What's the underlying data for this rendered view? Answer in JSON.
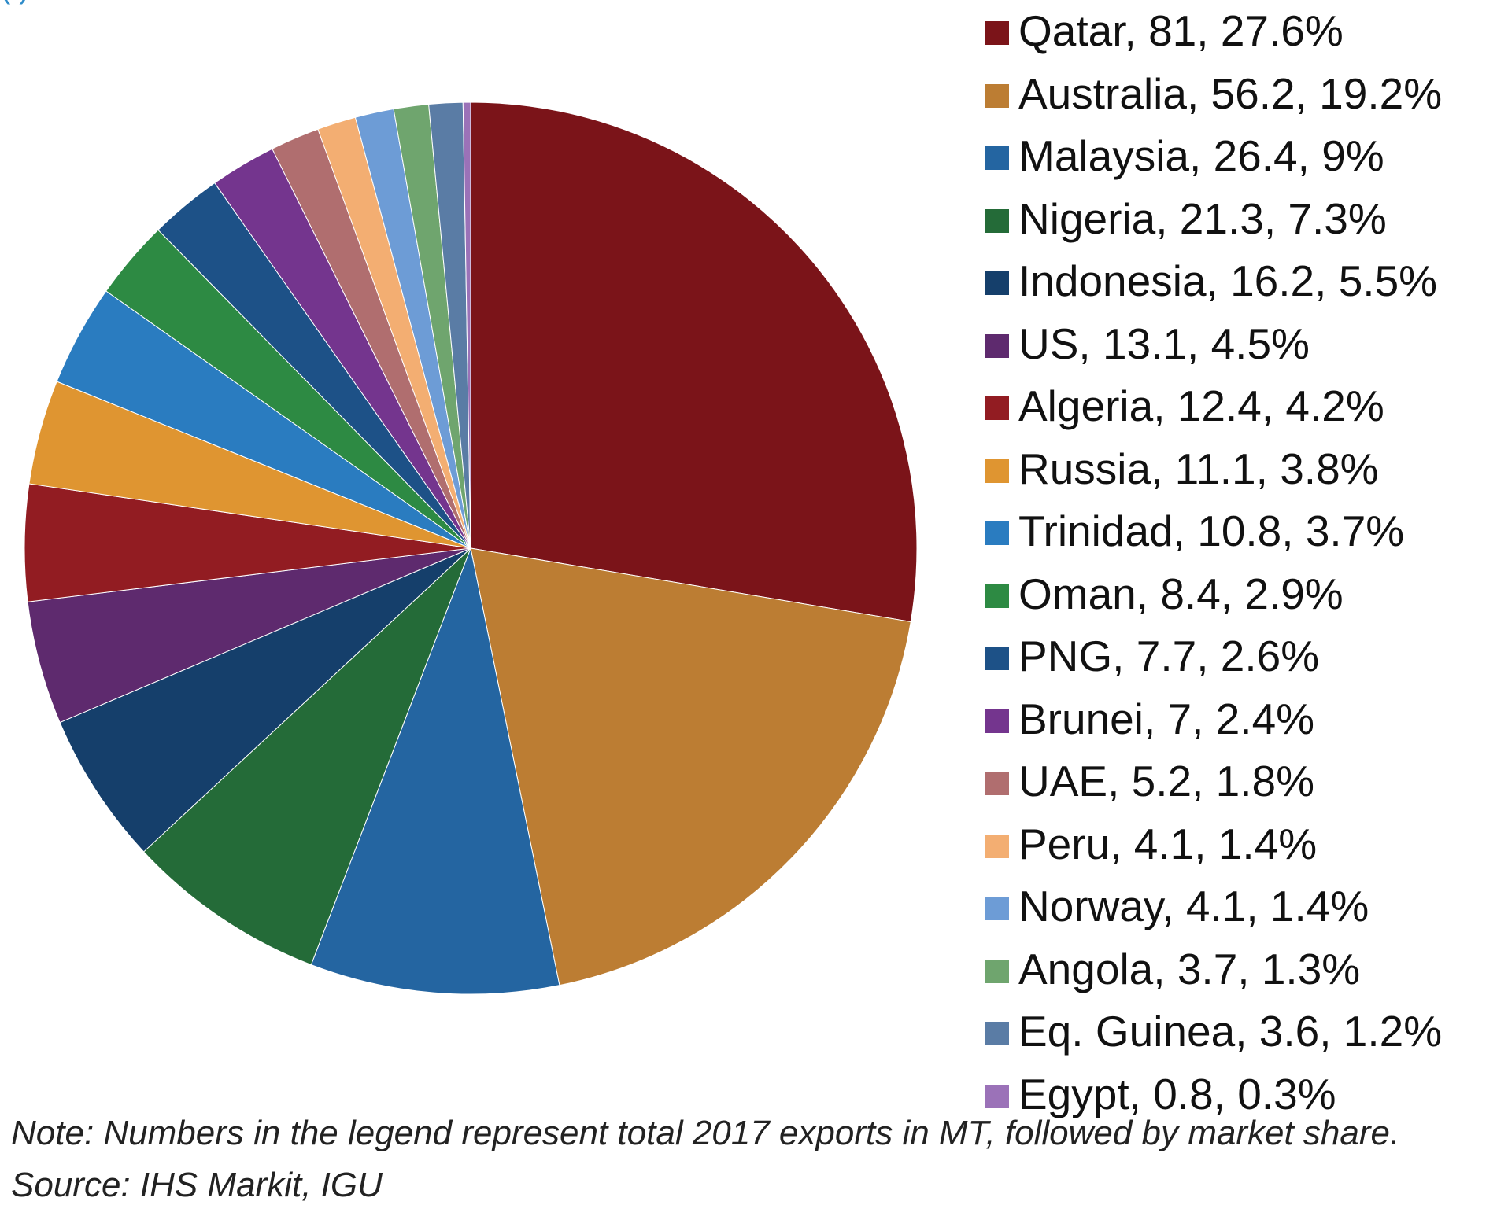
{
  "title_fragment": "( )",
  "chart_data": {
    "type": "pie",
    "title": "",
    "start_angle_deg": 0,
    "direction": "clockwise",
    "slices": [
      {
        "name": "Qatar",
        "value": 81,
        "share": "27.6%",
        "label": "Qatar, 81, 27.6%",
        "color": "#7B1419"
      },
      {
        "name": "Australia",
        "value": 56.2,
        "share": "19.2%",
        "label": "Australia, 56.2, 19.2%",
        "color": "#BC7D33"
      },
      {
        "name": "Malaysia",
        "value": 26.4,
        "share": "9%",
        "label": "Malaysia, 26.4, 9%",
        "color": "#2465A1"
      },
      {
        "name": "Nigeria",
        "value": 21.3,
        "share": "7.3%",
        "label": "Nigeria, 21.3, 7.3%",
        "color": "#246B38"
      },
      {
        "name": "Indonesia",
        "value": 16.2,
        "share": "5.5%",
        "label": "Indonesia, 16.2, 5.5%",
        "color": "#153F6B"
      },
      {
        "name": "US",
        "value": 13.1,
        "share": "4.5%",
        "label": "US, 13.1, 4.5%",
        "color": "#5E2A6E"
      },
      {
        "name": "Algeria",
        "value": 12.4,
        "share": "4.2%",
        "label": "Algeria, 12.4, 4.2%",
        "color": "#921C22"
      },
      {
        "name": "Russia",
        "value": 11.1,
        "share": "3.8%",
        "label": "Russia, 11.1, 3.8%",
        "color": "#DF9531"
      },
      {
        "name": "Trinidad",
        "value": 10.8,
        "share": "3.7%",
        "label": "Trinidad, 10.8, 3.7%",
        "color": "#2A7CC0"
      },
      {
        "name": "Oman",
        "value": 8.4,
        "share": "2.9%",
        "label": "Oman, 8.4, 2.9%",
        "color": "#2D8A43"
      },
      {
        "name": "PNG",
        "value": 7.7,
        "share": "2.6%",
        "label": "PNG, 7.7, 2.6%",
        "color": "#1D5187"
      },
      {
        "name": "Brunei",
        "value": 7,
        "share": "2.4%",
        "label": "Brunei, 7, 2.4%",
        "color": "#74358E"
      },
      {
        "name": "UAE",
        "value": 5.2,
        "share": "1.8%",
        "label": "UAE, 5.2, 1.8%",
        "color": "#B06E6F"
      },
      {
        "name": "Peru",
        "value": 4.1,
        "share": "1.4%",
        "label": "Peru, 4.1, 1.4%",
        "color": "#F3AE72"
      },
      {
        "name": "Norway",
        "value": 4.1,
        "share": "1.4%",
        "label": "Norway, 4.1, 1.4%",
        "color": "#6D9CD6"
      },
      {
        "name": "Angola",
        "value": 3.7,
        "share": "1.3%",
        "label": "Angola, 3.7, 1.3%",
        "color": "#6FA56E"
      },
      {
        "name": "Eq. Guinea",
        "value": 3.6,
        "share": "1.2%",
        "label": "Eq. Guinea, 3.6, 1.2%",
        "color": "#5A7CA5"
      },
      {
        "name": "Egypt",
        "value": 0.8,
        "share": "0.3%",
        "label": "Egypt, 0.8, 0.3%",
        "color": "#9B72B8"
      }
    ],
    "legend_position": "right",
    "note": "Note: Numbers in the legend represent total 2017 exports in MT, followed by market share. Source: IHS Markit, IGU"
  }
}
